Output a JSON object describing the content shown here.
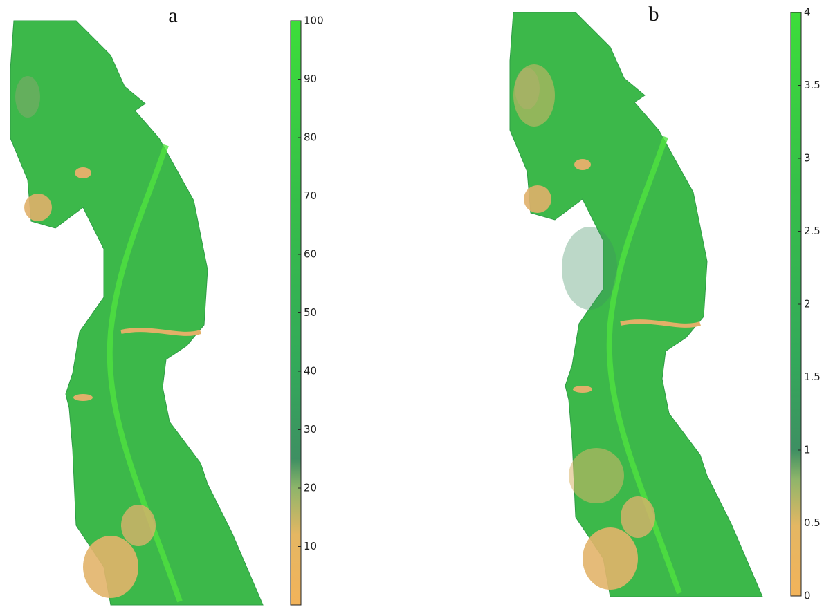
{
  "panels": [
    {
      "label": "a",
      "colorbar": {
        "lim": [
          0,
          100
        ],
        "ticks": [
          10,
          20,
          30,
          40,
          50,
          60,
          70,
          80,
          90,
          100
        ]
      }
    },
    {
      "label": "b",
      "colorbar": {
        "lim": [
          0,
          4
        ],
        "ticks": [
          0,
          0.5,
          1,
          1.5,
          2,
          2.5,
          3,
          3.5,
          4
        ]
      }
    }
  ]
}
